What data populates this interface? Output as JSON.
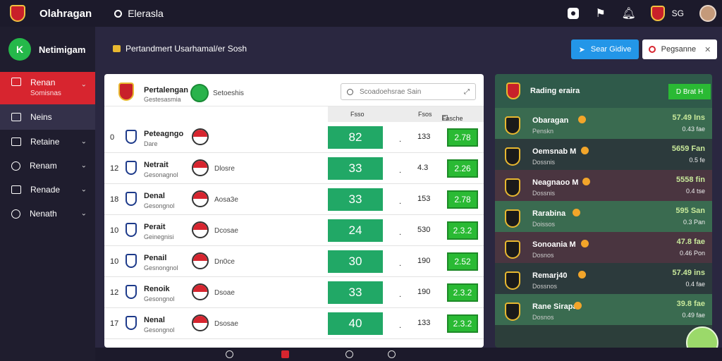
{
  "topbar": {
    "app_title": "Olahragan",
    "subtitle": "Elerasla",
    "user": "SG"
  },
  "sidebar": {
    "brand_logo": "K",
    "brand": "Netimigam",
    "items": [
      {
        "label": "Renan",
        "sub": "Somisnas"
      },
      {
        "label": "Neins",
        "sub": ""
      },
      {
        "label": "Retaine",
        "sub": ""
      },
      {
        "label": "Renam",
        "sub": ""
      },
      {
        "label": "Renade",
        "sub": ""
      },
      {
        "label": "Nenath",
        "sub": ""
      }
    ]
  },
  "header": {
    "breadcrumb": "Pertandmert Usarhamal/er Sosh",
    "primary_button": "Sear Gidive",
    "secondary_button": "Pegsanne"
  },
  "panel": {
    "team_name": "Pertalengan",
    "team_sub": "Gestesasmia",
    "badge_label": "Setoeshis",
    "search_placeholder": "Scoadoehsrae Sain",
    "columns": [
      "Fsso",
      "Fsos",
      "Fasche"
    ],
    "rows": [
      {
        "rank": "0",
        "name": "Peteagngo",
        "sub": "Dare",
        "label": "",
        "score": "82",
        "num": "133",
        "odds": "2.78"
      },
      {
        "rank": "12",
        "name": "Netrait",
        "sub": "Gesonagnol",
        "label": "Dlosre",
        "score": "33",
        "num": "4.3",
        "odds": "2.26"
      },
      {
        "rank": "18",
        "name": "Denal",
        "sub": "Gesongnol",
        "label": "Aosa3e",
        "score": "33",
        "num": "153",
        "odds": "2.78"
      },
      {
        "rank": "10",
        "name": "Perait",
        "sub": "Geinegnisi",
        "label": "Dcosae",
        "score": "24",
        "num": "530",
        "odds": "2.3.2"
      },
      {
        "rank": "10",
        "name": "Penail",
        "sub": "Gesnongnol",
        "label": "Dn0ce",
        "score": "30",
        "num": "190",
        "odds": "2.52"
      },
      {
        "rank": "12",
        "name": "Renoik",
        "sub": "Gesongnol",
        "label": "Dsoae",
        "score": "33",
        "num": "190",
        "odds": "2.3.2"
      },
      {
        "rank": "17",
        "name": "Nenal",
        "sub": "Gesongnol",
        "label": "Dsosae",
        "score": "40",
        "num": "133",
        "odds": "2.3.2"
      }
    ]
  },
  "rpanel": {
    "title": "Rading eraira",
    "button": "D Brat H",
    "rows": [
      {
        "name": "Obaragan",
        "sub": "Penskn",
        "val": "57.49 Ins",
        "val2": "0.43 fae"
      },
      {
        "name": "Oemsnab M",
        "sub": "Dossnis",
        "val": "5659 Fan",
        "val2": "0.5 fe"
      },
      {
        "name": "Neagnaoo M",
        "sub": "Dossnis",
        "val": "5558 fin",
        "val2": "0.4 tse"
      },
      {
        "name": "Rarabina",
        "sub": "Doissos",
        "val": "595 San",
        "val2": "0.3 Pan"
      },
      {
        "name": "Sonoania M",
        "sub": "Dosnos",
        "val": "47.8 fae",
        "val2": "0.46 Pon"
      },
      {
        "name": "Remarj40",
        "sub": "Dossnos",
        "val": "57.49 ins",
        "val2": "0.4 fae"
      },
      {
        "name": "Rane Sirapa",
        "sub": "Dosnos",
        "val": "39.8 fae",
        "val2": "0.49 fae"
      }
    ]
  },
  "colors": {
    "accent": "#d7252f",
    "primary": "#2396e8",
    "score_green": "#21a866",
    "odds_green": "#2aba34"
  },
  "icons": [
    "search-icon",
    "bell-icon",
    "chevron-down-icon",
    "user-avatar"
  ]
}
